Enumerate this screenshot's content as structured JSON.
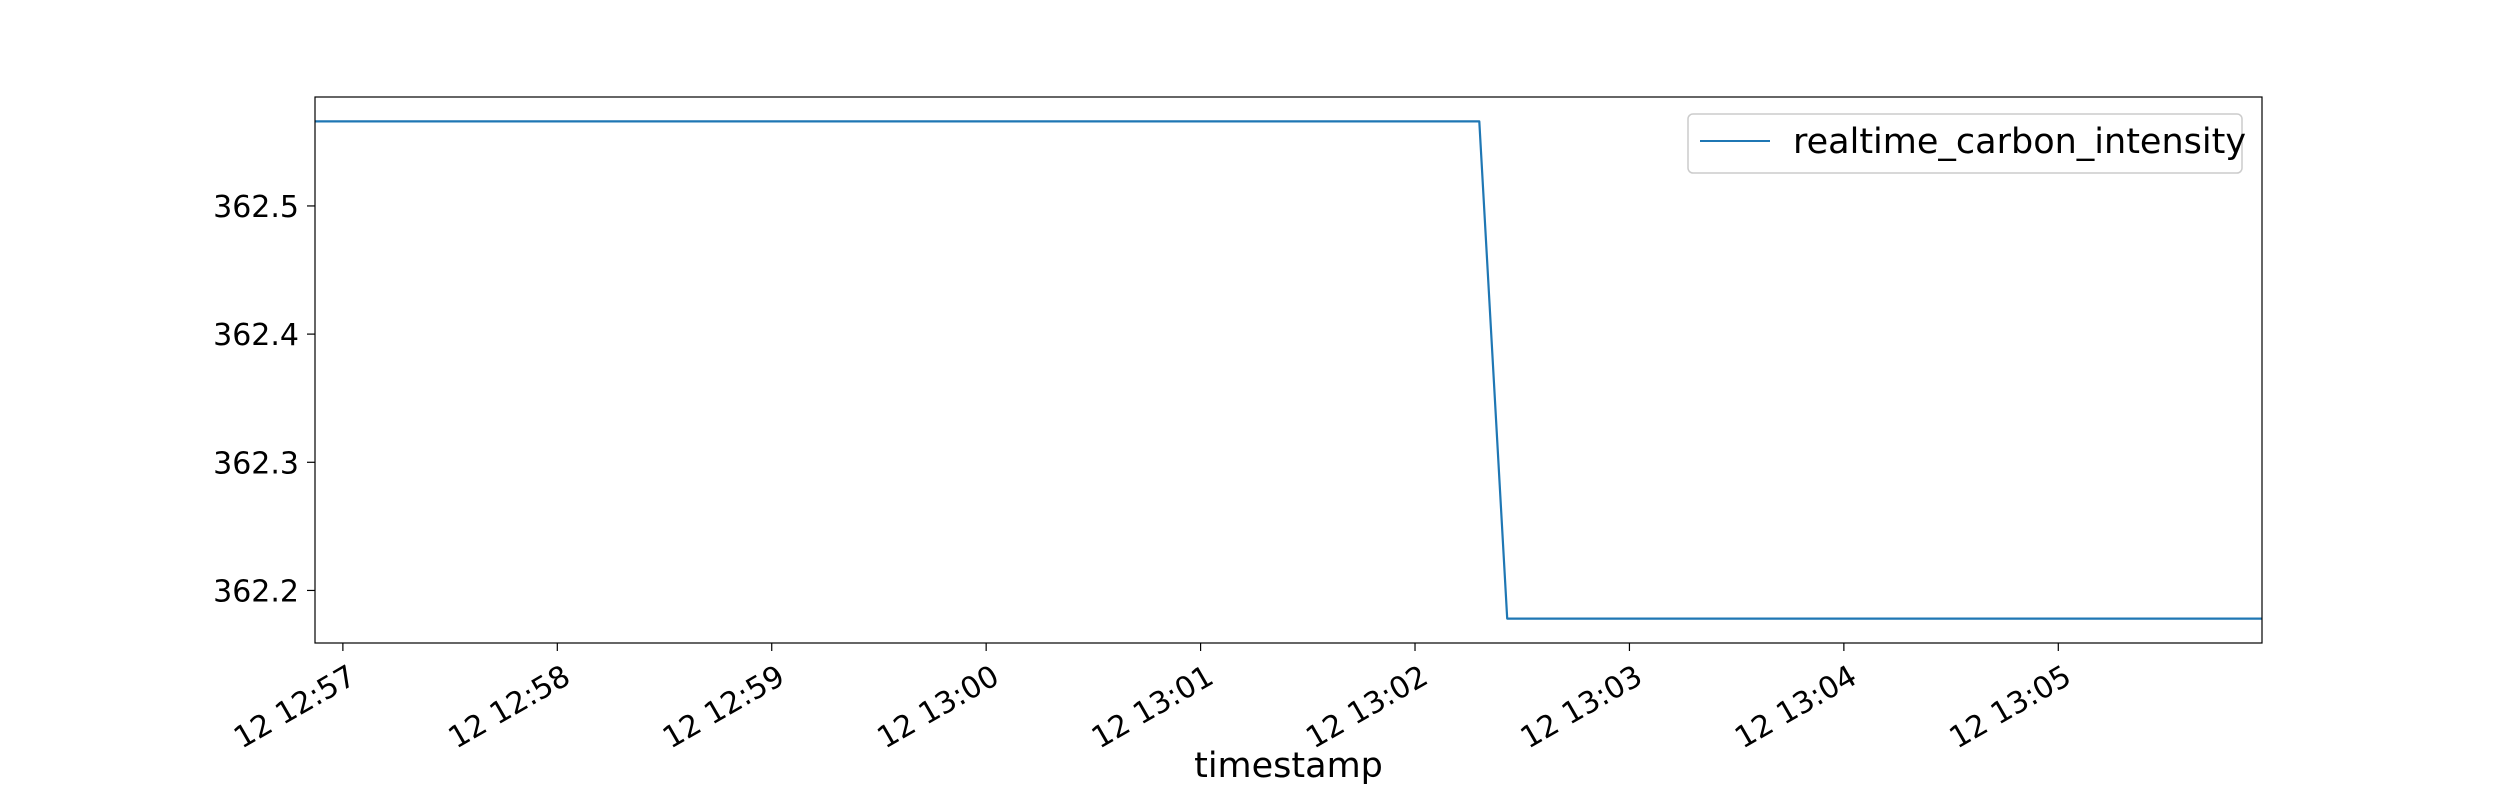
{
  "chart_data": {
    "type": "line",
    "title": "",
    "xlabel": "timestamp",
    "ylabel": "",
    "x_tick_labels": [
      "12 12:57",
      "12 12:58",
      "12 12:59",
      "12 13:00",
      "12 13:01",
      "12 13:02",
      "12 13:03",
      "12 13:04",
      "12 13:05"
    ],
    "x_tick_minutes": [
      0,
      1,
      2,
      3,
      4,
      5,
      6,
      7,
      8
    ],
    "xlim_minutes": [
      -0.13,
      8.95
    ],
    "y_tick_labels": [
      "362.2",
      "362.3",
      "362.4",
      "362.5"
    ],
    "y_ticks": [
      362.2,
      362.3,
      362.4,
      362.5
    ],
    "ylim": [
      362.159,
      362.585
    ],
    "legend": {
      "position": "top-right",
      "entries": [
        "realtime_carbon_intensity"
      ]
    },
    "grid": false,
    "series": [
      {
        "name": "realtime_carbon_intensity",
        "color": "#1f77b4",
        "x_minutes": [
          -0.13,
          5.3,
          5.43,
          8.95
        ],
        "values": [
          362.566,
          362.566,
          362.178,
          362.178
        ]
      }
    ]
  }
}
